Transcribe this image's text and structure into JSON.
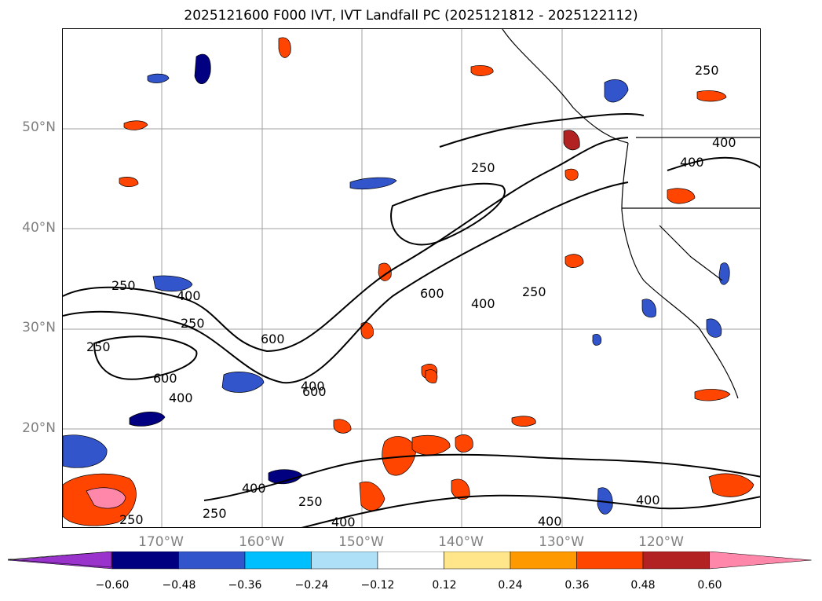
{
  "title": "2025121600 F000 IVT, IVT Landfall PC (2025121812 - 2025122112)",
  "map": {
    "lat_labels": [
      "50°N",
      "40°N",
      "30°N",
      "20°N"
    ],
    "lon_labels": [
      "170°W",
      "160°W",
      "150°W",
      "140°W",
      "130°W",
      "120°W"
    ],
    "contour_labels": [
      "250",
      "400",
      "250",
      "600",
      "400",
      "600",
      "400",
      "250",
      "600",
      "600",
      "400",
      "250",
      "250",
      "400",
      "250",
      "250",
      "400",
      "400",
      "400",
      "250",
      "400",
      "400",
      "250"
    ],
    "colors": {
      "contour": "#000000",
      "coastline": "#000000",
      "grid": "#999999"
    }
  },
  "colorbar": {
    "colors": [
      "#9933cc",
      "#000080",
      "#3355cc",
      "#00bfff",
      "#aee0f8",
      "#ffffff",
      "#ffe68a",
      "#ff9900",
      "#ff4500",
      "#b22222",
      "#ff88aa"
    ],
    "ticks": [
      "−0.60",
      "−0.48",
      "−0.36",
      "−0.24",
      "−0.12",
      "0.12",
      "0.24",
      "0.36",
      "0.48",
      "0.60"
    ]
  }
}
